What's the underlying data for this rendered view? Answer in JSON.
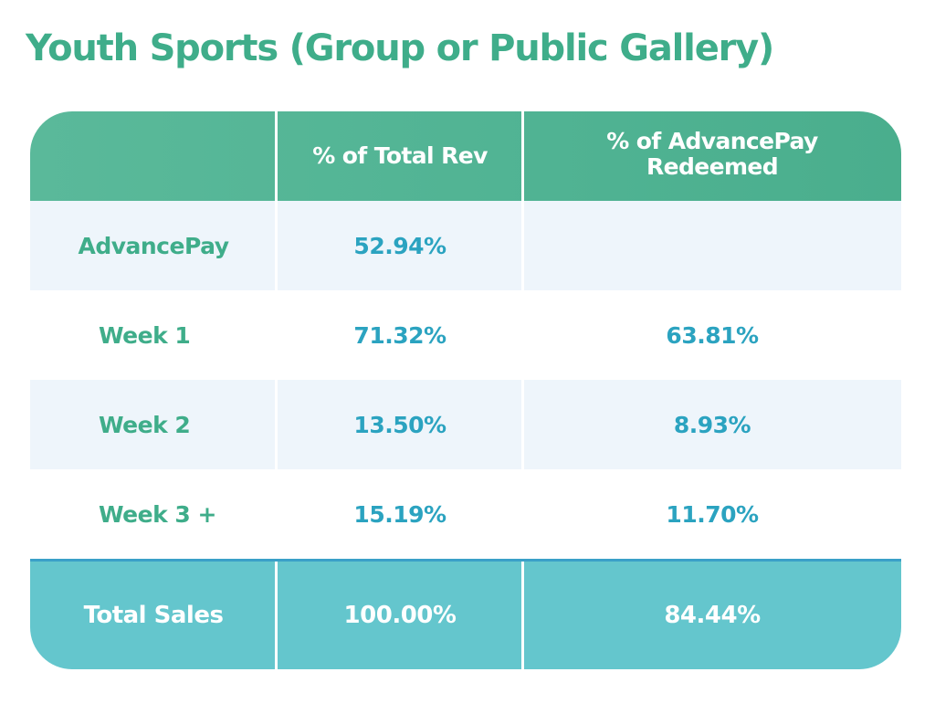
{
  "chart_data": {
    "type": "table",
    "title": "Youth Sports (Group or Public Gallery)",
    "columns": [
      "",
      "% of Total Rev",
      "% of AdvancePay Redeemed"
    ],
    "rows": [
      {
        "label": "AdvancePay",
        "total_rev": "52.94%",
        "redeemed": ""
      },
      {
        "label": "Week 1",
        "total_rev": "71.32%",
        "redeemed": "63.81%"
      },
      {
        "label": "Week 2",
        "total_rev": "13.50%",
        "redeemed": "8.93%"
      },
      {
        "label": "Week 3 +",
        "total_rev": "15.19%",
        "redeemed": "11.70%"
      }
    ],
    "total": {
      "label": "Total Sales",
      "total_rev": "100.00%",
      "redeemed": "84.44%"
    }
  },
  "colors": {
    "title": "#3fad8a",
    "header_bg": "#52b494",
    "row_shade": "#eef5fb",
    "label_text": "#3fad8a",
    "value_text": "#2ba3c0",
    "total_bg": "#64c6cd",
    "total_border": "#3aa0c8"
  }
}
